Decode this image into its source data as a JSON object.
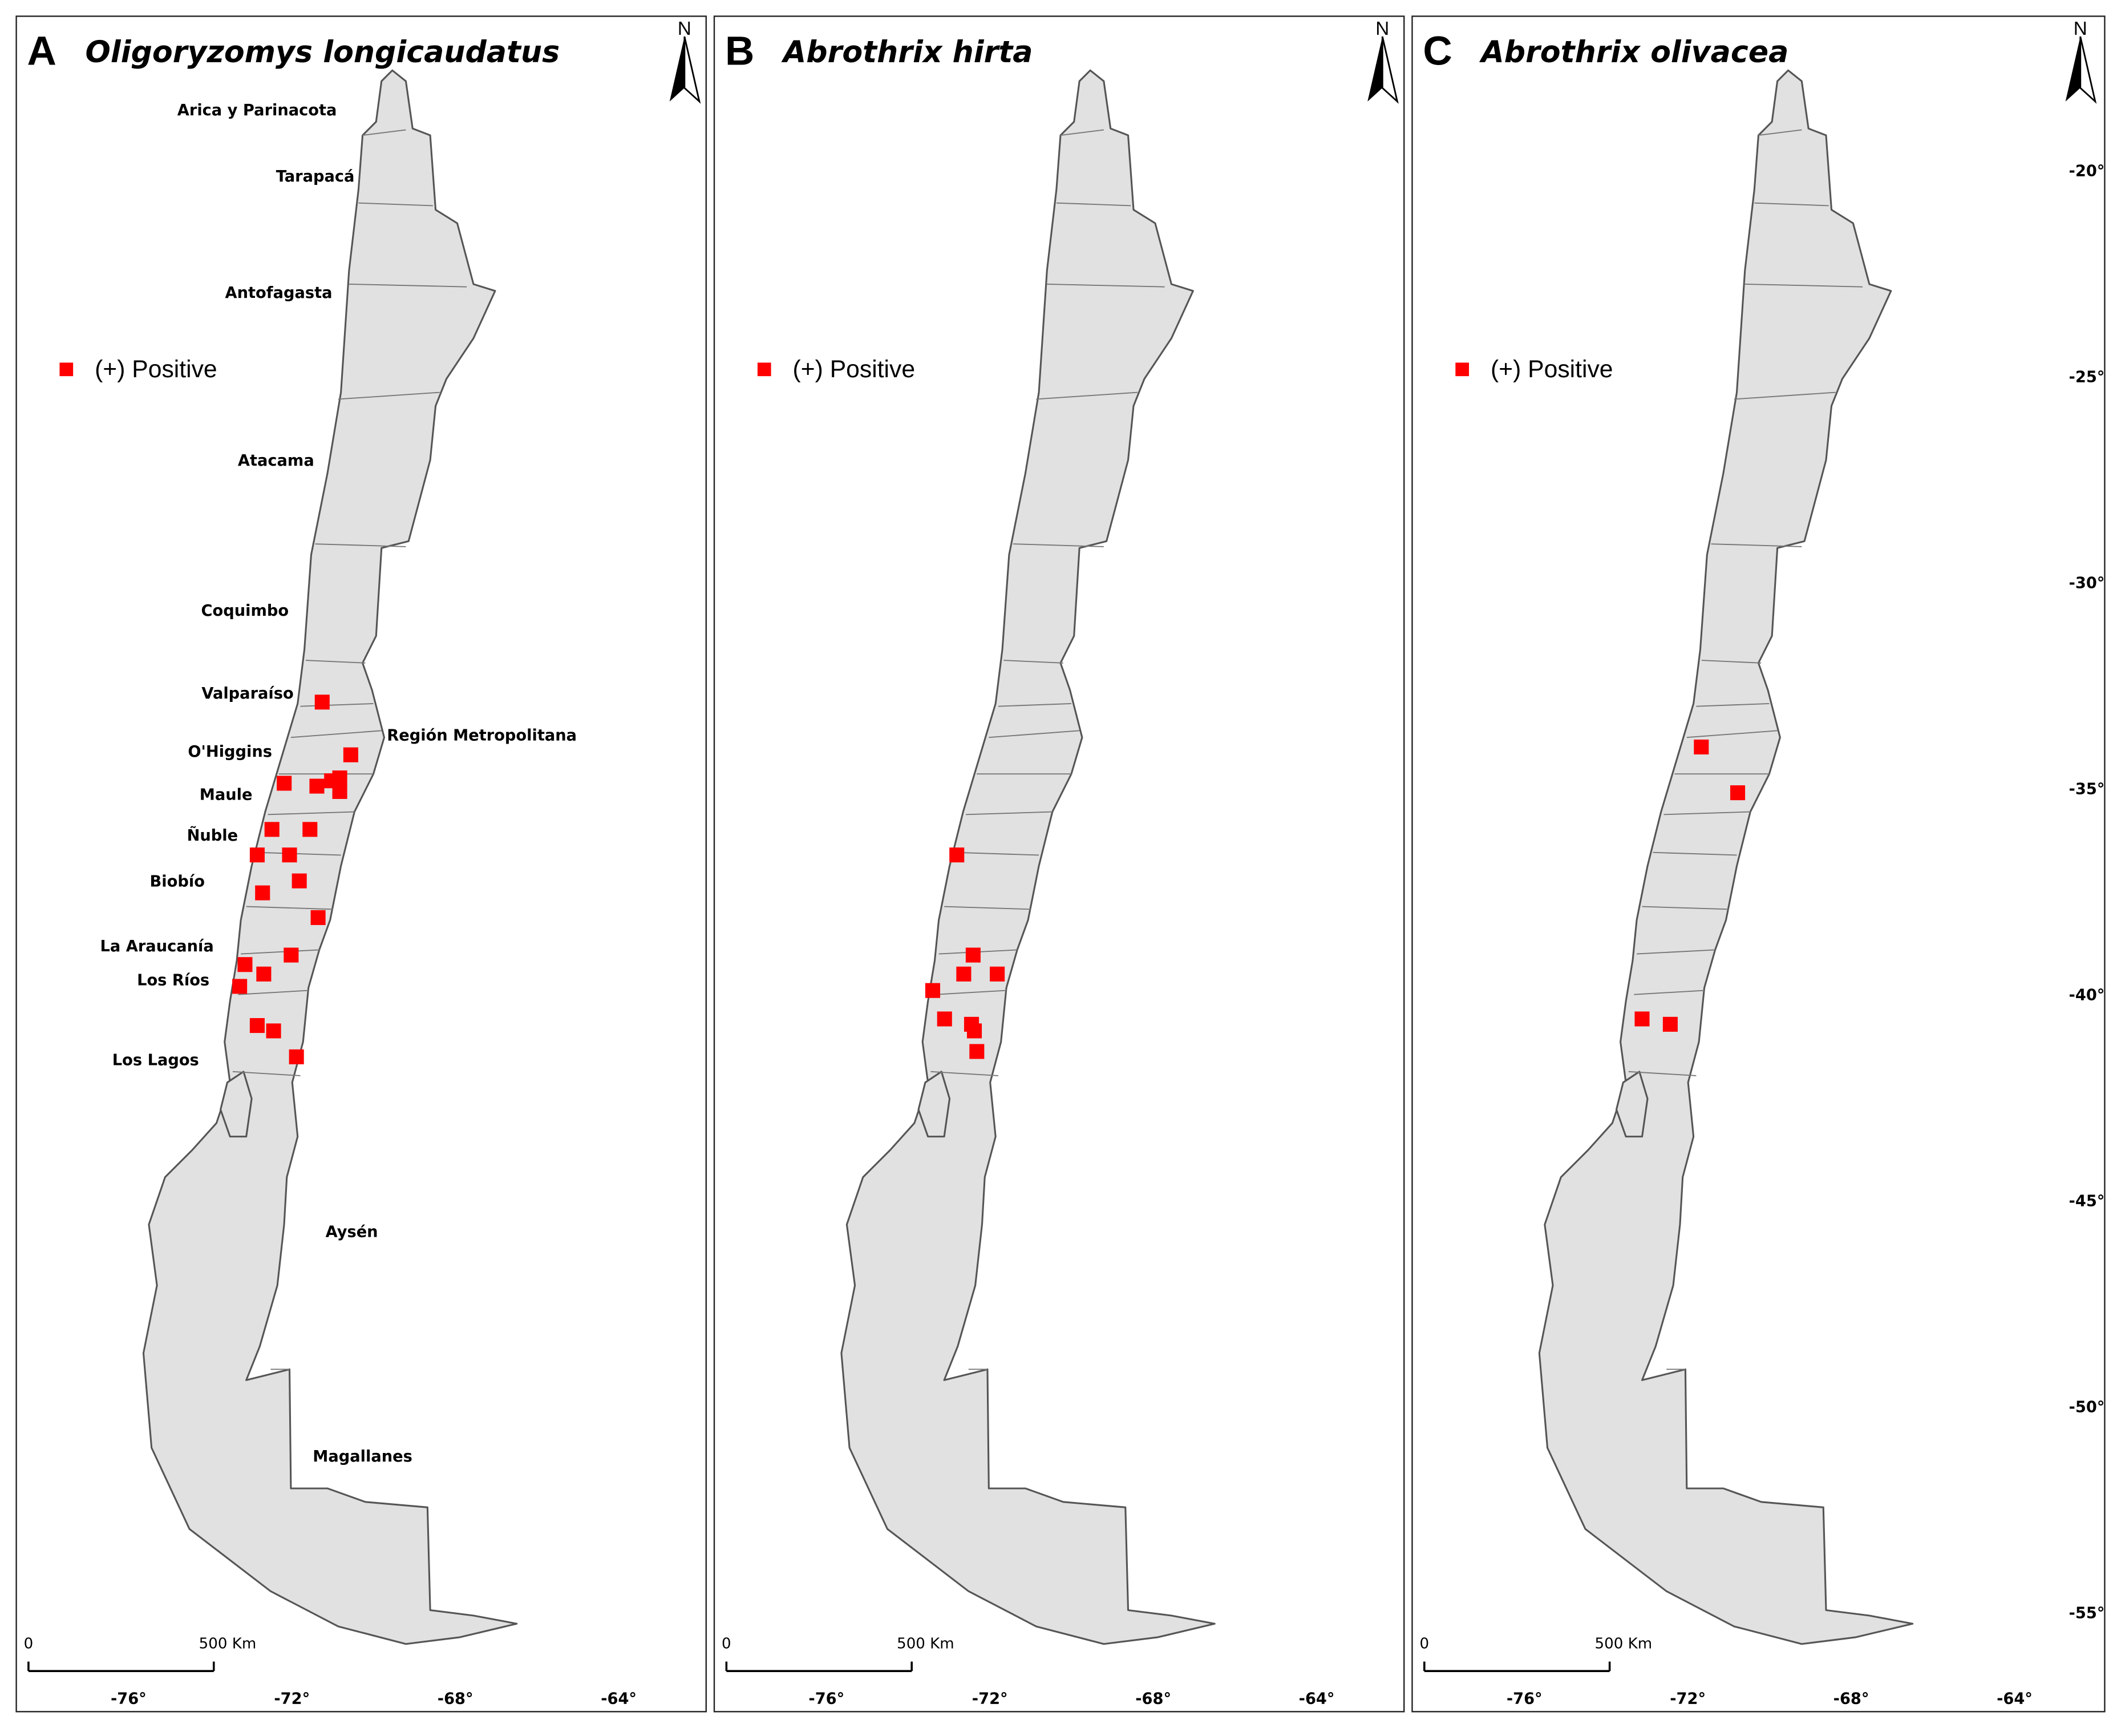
{
  "marker_color": "#ff0000",
  "panels": [
    {
      "letter": "A",
      "title": "Oligoryzomys longicaudatus",
      "legend": "(+) Positive",
      "north": "N",
      "scale_labels": [
        "0",
        "500 Km"
      ],
      "regions": [
        "Arica y Parinacota",
        "Tarapacá",
        "Antofagasta",
        "Atacama",
        "Coquimbo",
        "Valparaíso",
        "Región Metropolitana",
        "O'Higgins",
        "Maule",
        "Ñuble",
        "Biobío",
        "La Araucanía",
        "Los Ríos",
        "Los Lagos",
        "Aysén",
        "Magallanes"
      ],
      "sites": [
        {
          "lon": -71.26,
          "lat": -32.87
        },
        {
          "lon": -70.56,
          "lat": -34.15
        },
        {
          "lon": -72.19,
          "lat": -34.84
        },
        {
          "lon": -71.39,
          "lat": -34.91
        },
        {
          "lon": -71.03,
          "lat": -34.78
        },
        {
          "lon": -70.83,
          "lat": -34.71
        },
        {
          "lon": -70.83,
          "lat": -35.04
        },
        {
          "lon": -72.49,
          "lat": -35.96
        },
        {
          "lon": -71.56,
          "lat": -35.96
        },
        {
          "lon": -72.85,
          "lat": -36.58
        },
        {
          "lon": -72.06,
          "lat": -36.58
        },
        {
          "lon": -71.82,
          "lat": -37.21
        },
        {
          "lon": -72.72,
          "lat": -37.5
        },
        {
          "lon": -71.36,
          "lat": -38.1
        },
        {
          "lon": -72.02,
          "lat": -39.01
        },
        {
          "lon": -73.15,
          "lat": -39.24
        },
        {
          "lon": -72.69,
          "lat": -39.47
        },
        {
          "lon": -73.28,
          "lat": -39.77
        },
        {
          "lon": -72.85,
          "lat": -40.72
        },
        {
          "lon": -72.45,
          "lat": -40.85
        },
        {
          "lon": -71.89,
          "lat": -41.48
        }
      ]
    },
    {
      "letter": "B",
      "title": "Abrothrix hirta",
      "legend": "(+) Positive",
      "north": "N",
      "scale_labels": [
        "0",
        "500 Km"
      ],
      "sites": [
        {
          "lon": -72.81,
          "lat": -36.58
        },
        {
          "lon": -72.41,
          "lat": -39.01
        },
        {
          "lon": -72.64,
          "lat": -39.47
        },
        {
          "lon": -71.82,
          "lat": -39.47
        },
        {
          "lon": -73.4,
          "lat": -39.87
        },
        {
          "lon": -73.11,
          "lat": -40.56
        },
        {
          "lon": -72.45,
          "lat": -40.69
        },
        {
          "lon": -72.38,
          "lat": -40.85
        },
        {
          "lon": -72.32,
          "lat": -41.35
        }
      ]
    },
    {
      "letter": "C",
      "title": "Abrothrix olivacea",
      "legend": "(+) Positive",
      "north": "N",
      "scale_labels": [
        "0",
        "500 Km"
      ],
      "sites": [
        {
          "lon": -71.67,
          "lat": -33.96
        },
        {
          "lon": -70.78,
          "lat": -35.07
        },
        {
          "lon": -73.12,
          "lat": -40.56
        },
        {
          "lon": -72.43,
          "lat": -40.69
        }
      ]
    }
  ],
  "lon_ticks": [
    {
      "value": -76,
      "label": "-76°"
    },
    {
      "value": -72,
      "label": "-72°"
    },
    {
      "value": -68,
      "label": "-68°"
    },
    {
      "value": -64,
      "label": "-64°"
    }
  ],
  "lat_ticks": [
    {
      "value": -20,
      "label": "-20°"
    },
    {
      "value": -25,
      "label": "-25°"
    },
    {
      "value": -30,
      "label": "-30°"
    },
    {
      "value": -35,
      "label": "-35°"
    },
    {
      "value": -40,
      "label": "-40°"
    },
    {
      "value": -45,
      "label": "-45°"
    },
    {
      "value": -50,
      "label": "-50°"
    },
    {
      "value": -55,
      "label": "-55°"
    }
  ]
}
